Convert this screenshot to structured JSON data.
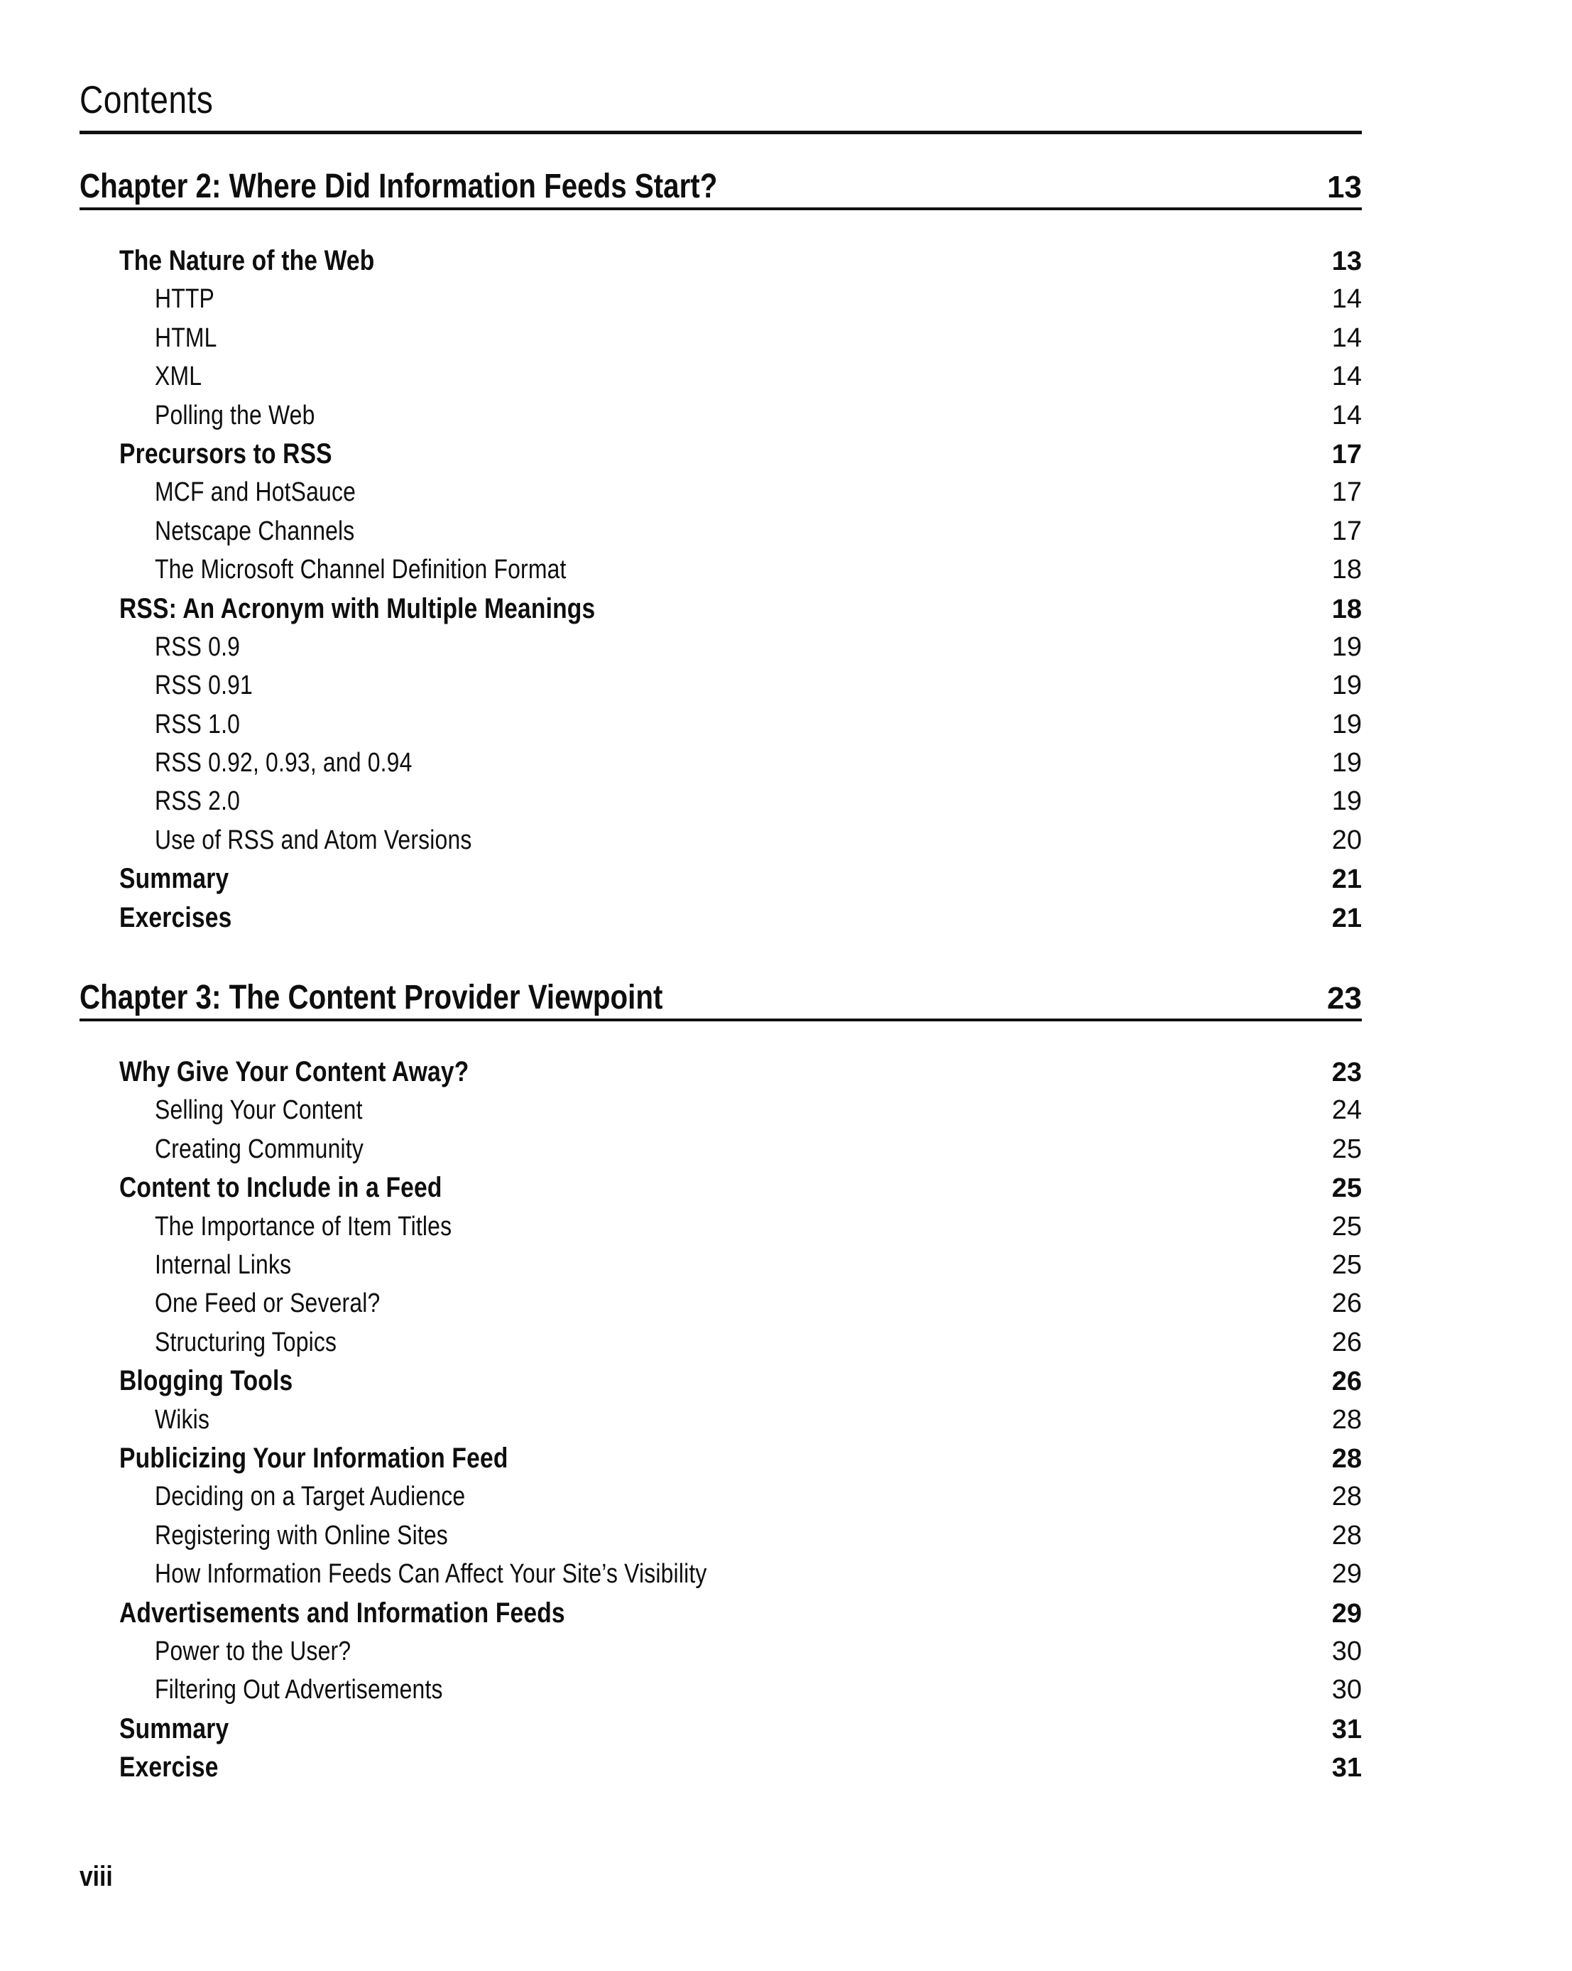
{
  "page": {
    "title": "Contents",
    "footer_folio": "viii",
    "ink_color": "#111111",
    "background_color": "#ffffff"
  },
  "chapters": [
    {
      "title": "Chapter 2: Where Did Information Feeds Start?",
      "page": "13",
      "entries": [
        {
          "label": "The Nature of the Web",
          "page": "13",
          "level": 1
        },
        {
          "label": "HTTP",
          "page": "14",
          "level": 2
        },
        {
          "label": "HTML",
          "page": "14",
          "level": 2
        },
        {
          "label": "XML",
          "page": "14",
          "level": 2
        },
        {
          "label": "Polling the Web",
          "page": "14",
          "level": 2
        },
        {
          "label": "Precursors to RSS",
          "page": "17",
          "level": 1
        },
        {
          "label": "MCF and HotSauce",
          "page": "17",
          "level": 2
        },
        {
          "label": "Netscape Channels",
          "page": "17",
          "level": 2
        },
        {
          "label": "The Microsoft Channel Definition Format",
          "page": "18",
          "level": 2
        },
        {
          "label": "RSS: An Acronym with Multiple Meanings",
          "page": "18",
          "level": 1
        },
        {
          "label": "RSS 0.9",
          "page": "19",
          "level": 2
        },
        {
          "label": "RSS 0.91",
          "page": "19",
          "level": 2
        },
        {
          "label": "RSS 1.0",
          "page": "19",
          "level": 2
        },
        {
          "label": "RSS 0.92, 0.93, and 0.94",
          "page": "19",
          "level": 2
        },
        {
          "label": "RSS 2.0",
          "page": "19",
          "level": 2
        },
        {
          "label": "Use of RSS and Atom Versions",
          "page": "20",
          "level": 2
        },
        {
          "label": "Summary",
          "page": "21",
          "level": 1
        },
        {
          "label": "Exercises",
          "page": "21",
          "level": 1
        }
      ]
    },
    {
      "title": "Chapter 3: The Content Provider Viewpoint",
      "page": "23",
      "entries": [
        {
          "label": "Why Give Your Content Away?",
          "page": "23",
          "level": 1
        },
        {
          "label": "Selling Your Content",
          "page": "24",
          "level": 2
        },
        {
          "label": "Creating Community",
          "page": "25",
          "level": 2
        },
        {
          "label": "Content to Include in a Feed",
          "page": "25",
          "level": 1
        },
        {
          "label": "The Importance of Item Titles",
          "page": "25",
          "level": 2
        },
        {
          "label": "Internal Links",
          "page": "25",
          "level": 2
        },
        {
          "label": "One Feed or Several?",
          "page": "26",
          "level": 2
        },
        {
          "label": "Structuring Topics",
          "page": "26",
          "level": 2
        },
        {
          "label": "Blogging Tools",
          "page": "26",
          "level": 1
        },
        {
          "label": "Wikis",
          "page": "28",
          "level": 2
        },
        {
          "label": "Publicizing Your Information Feed",
          "page": "28",
          "level": 1
        },
        {
          "label": "Deciding on a Target Audience",
          "page": "28",
          "level": 2
        },
        {
          "label": "Registering with Online Sites",
          "page": "28",
          "level": 2
        },
        {
          "label": "How Information Feeds Can Affect Your Site’s Visibility",
          "page": "29",
          "level": 2
        },
        {
          "label": "Advertisements and Information Feeds",
          "page": "29",
          "level": 1
        },
        {
          "label": "Power to the User?",
          "page": "30",
          "level": 2
        },
        {
          "label": "Filtering Out Advertisements",
          "page": "30",
          "level": 2
        },
        {
          "label": "Summary",
          "page": "31",
          "level": 1
        },
        {
          "label": "Exercise",
          "page": "31",
          "level": 1
        }
      ]
    }
  ]
}
